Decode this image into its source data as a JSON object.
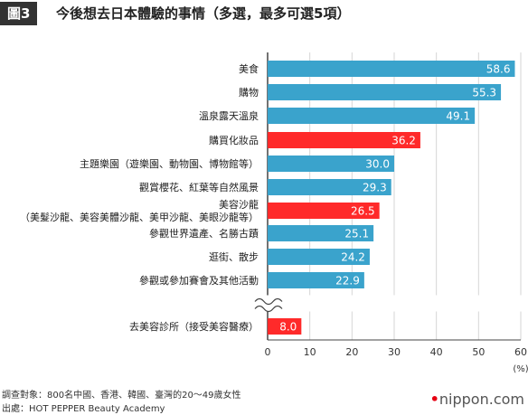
{
  "header": {
    "badge": "圖3",
    "title": "今後想去日本體驗的事情（多選，最多可選5項）"
  },
  "chart_data": {
    "type": "bar",
    "orientation": "horizontal",
    "categories": [
      [
        "美食"
      ],
      [
        "購物"
      ],
      [
        "溫泉露天溫泉"
      ],
      [
        "購買化妝品"
      ],
      [
        "主題樂園（遊樂園、動物園、博物館等）"
      ],
      [
        "觀賞櫻花、紅葉等自然風景"
      ],
      [
        "美容沙龍",
        "（美髮沙龍、美容美體沙龍、美甲沙龍、美眼沙龍等）"
      ],
      [
        "參觀世界遺產、名勝古蹟"
      ],
      [
        "逛街、散步"
      ],
      [
        "參觀或參加賽會及其他活動"
      ],
      [
        "去美容診所（接受美容醫療）"
      ]
    ],
    "values": [
      58.6,
      55.3,
      49.1,
      36.2,
      30.0,
      29.3,
      26.5,
      25.1,
      24.2,
      22.9,
      8.0
    ],
    "value_labels": [
      "58.6",
      "55.3",
      "49.1",
      "36.2",
      "30.0",
      "29.3",
      "26.5",
      "25.1",
      "24.2",
      "22.9",
      "8.0"
    ],
    "highlight": [
      false,
      false,
      false,
      true,
      false,
      false,
      true,
      false,
      false,
      false,
      true
    ],
    "axis_break_after_index": 9,
    "xlim": [
      0,
      60
    ],
    "xticks": [
      "0",
      "10",
      "20",
      "30",
      "40",
      "50",
      "60"
    ],
    "xunit": "(%)",
    "grid": true,
    "colors": {
      "normal": "#3aa3cc",
      "highlight": "#ff2a2a",
      "grid": "#d6d6d6",
      "axis": "#444444"
    }
  },
  "footer": {
    "source_line1": "調查對象：800名中國、香港、韓國、臺灣的20～49歲女性",
    "source_line2": "出處：HOT PEPPER Beauty Academy",
    "brand_dot": "•",
    "brand_text": "nippon.com"
  }
}
